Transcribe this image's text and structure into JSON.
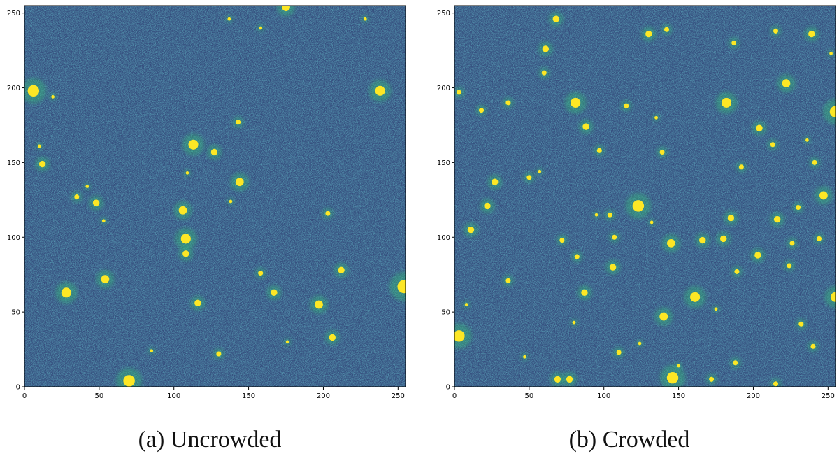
{
  "figure": {
    "colors": {
      "background_dark": "#3a2f6b",
      "background_mid": "#31688e",
      "background_teal": "#35b779",
      "star_yellow": "#fde725"
    },
    "panels": [
      {
        "id": "uncrowded",
        "caption": "(a) Uncrowded",
        "x_ticks": [
          0,
          50,
          100,
          150,
          200,
          250
        ],
        "y_ticks": [
          0,
          50,
          100,
          150,
          200,
          250
        ],
        "xlim": [
          0,
          255
        ],
        "ylim": [
          0,
          255
        ],
        "stars": [
          {
            "x": 175,
            "y": 254,
            "r": 5
          },
          {
            "x": 6,
            "y": 198,
            "r": 7
          },
          {
            "x": 238,
            "y": 198,
            "r": 6
          },
          {
            "x": 19,
            "y": 194,
            "r": 2
          },
          {
            "x": 10,
            "y": 161,
            "r": 2
          },
          {
            "x": 12,
            "y": 149,
            "r": 4
          },
          {
            "x": 113,
            "y": 162,
            "r": 6
          },
          {
            "x": 127,
            "y": 157,
            "r": 4
          },
          {
            "x": 143,
            "y": 177,
            "r": 3
          },
          {
            "x": 109,
            "y": 143,
            "r": 2
          },
          {
            "x": 144,
            "y": 137,
            "r": 5
          },
          {
            "x": 35,
            "y": 127,
            "r": 3
          },
          {
            "x": 48,
            "y": 123,
            "r": 4
          },
          {
            "x": 53,
            "y": 111,
            "r": 2
          },
          {
            "x": 106,
            "y": 118,
            "r": 5
          },
          {
            "x": 108,
            "y": 99,
            "r": 6
          },
          {
            "x": 108,
            "y": 89,
            "r": 4
          },
          {
            "x": 203,
            "y": 116,
            "r": 3
          },
          {
            "x": 212,
            "y": 78,
            "r": 4
          },
          {
            "x": 158,
            "y": 76,
            "r": 3
          },
          {
            "x": 167,
            "y": 63,
            "r": 4
          },
          {
            "x": 54,
            "y": 72,
            "r": 5
          },
          {
            "x": 28,
            "y": 63,
            "r": 6
          },
          {
            "x": 116,
            "y": 56,
            "r": 4
          },
          {
            "x": 197,
            "y": 55,
            "r": 5
          },
          {
            "x": 206,
            "y": 33,
            "r": 4
          },
          {
            "x": 130,
            "y": 22,
            "r": 3
          },
          {
            "x": 70,
            "y": 4,
            "r": 7
          },
          {
            "x": 254,
            "y": 67,
            "r": 8
          },
          {
            "x": 228,
            "y": 246,
            "r": 2
          },
          {
            "x": 137,
            "y": 246,
            "r": 2
          },
          {
            "x": 158,
            "y": 240,
            "r": 2
          },
          {
            "x": 42,
            "y": 134,
            "r": 2
          },
          {
            "x": 138,
            "y": 124,
            "r": 2
          },
          {
            "x": 85,
            "y": 24,
            "r": 2
          },
          {
            "x": 176,
            "y": 30,
            "r": 2
          }
        ]
      },
      {
        "id": "crowded",
        "caption": "(b) Crowded",
        "x_ticks": [
          0,
          50,
          100,
          150,
          200,
          250
        ],
        "y_ticks": [
          0,
          50,
          100,
          150,
          200,
          250
        ],
        "xlim": [
          0,
          255
        ],
        "ylim": [
          0,
          255
        ],
        "stars": [
          {
            "x": 68,
            "y": 246,
            "r": 4
          },
          {
            "x": 61,
            "y": 226,
            "r": 4
          },
          {
            "x": 81,
            "y": 190,
            "r": 6
          },
          {
            "x": 182,
            "y": 190,
            "r": 6
          },
          {
            "x": 255,
            "y": 184,
            "r": 7
          },
          {
            "x": 88,
            "y": 174,
            "r": 4
          },
          {
            "x": 130,
            "y": 236,
            "r": 4
          },
          {
            "x": 222,
            "y": 203,
            "r": 5
          },
          {
            "x": 239,
            "y": 236,
            "r": 4
          },
          {
            "x": 204,
            "y": 173,
            "r": 4
          },
          {
            "x": 123,
            "y": 121,
            "r": 7
          },
          {
            "x": 22,
            "y": 121,
            "r": 4
          },
          {
            "x": 27,
            "y": 137,
            "r": 4
          },
          {
            "x": 11,
            "y": 105,
            "r": 4
          },
          {
            "x": 145,
            "y": 96,
            "r": 5
          },
          {
            "x": 166,
            "y": 98,
            "r": 4
          },
          {
            "x": 180,
            "y": 99,
            "r": 4
          },
          {
            "x": 106,
            "y": 80,
            "r": 4
          },
          {
            "x": 87,
            "y": 63,
            "r": 4
          },
          {
            "x": 161,
            "y": 60,
            "r": 6
          },
          {
            "x": 140,
            "y": 47,
            "r": 5
          },
          {
            "x": 146,
            "y": 6,
            "r": 7
          },
          {
            "x": 69,
            "y": 5,
            "r": 4
          },
          {
            "x": 77,
            "y": 5,
            "r": 4
          },
          {
            "x": 3,
            "y": 34,
            "r": 7
          },
          {
            "x": 255,
            "y": 60,
            "r": 6
          },
          {
            "x": 247,
            "y": 128,
            "r": 5
          },
          {
            "x": 216,
            "y": 112,
            "r": 4
          },
          {
            "x": 203,
            "y": 88,
            "r": 4
          },
          {
            "x": 185,
            "y": 113,
            "r": 4
          },
          {
            "x": 36,
            "y": 71,
            "r": 3
          },
          {
            "x": 50,
            "y": 140,
            "r": 3
          },
          {
            "x": 97,
            "y": 158,
            "r": 3
          },
          {
            "x": 139,
            "y": 157,
            "r": 3
          },
          {
            "x": 232,
            "y": 42,
            "r": 3
          },
          {
            "x": 240,
            "y": 27,
            "r": 3
          },
          {
            "x": 110,
            "y": 23,
            "r": 3
          },
          {
            "x": 188,
            "y": 16,
            "r": 3
          },
          {
            "x": 172,
            "y": 5,
            "r": 3
          },
          {
            "x": 215,
            "y": 2,
            "r": 3
          },
          {
            "x": 18,
            "y": 185,
            "r": 3
          },
          {
            "x": 36,
            "y": 190,
            "r": 3
          },
          {
            "x": 3,
            "y": 197,
            "r": 3
          },
          {
            "x": 115,
            "y": 188,
            "r": 3
          },
          {
            "x": 213,
            "y": 162,
            "r": 3
          },
          {
            "x": 230,
            "y": 120,
            "r": 3
          },
          {
            "x": 244,
            "y": 99,
            "r": 3
          },
          {
            "x": 226,
            "y": 96,
            "r": 3
          },
          {
            "x": 82,
            "y": 87,
            "r": 3
          },
          {
            "x": 72,
            "y": 98,
            "r": 3
          },
          {
            "x": 107,
            "y": 100,
            "r": 3
          },
          {
            "x": 104,
            "y": 115,
            "r": 3
          },
          {
            "x": 192,
            "y": 147,
            "r": 3
          },
          {
            "x": 241,
            "y": 150,
            "r": 3
          },
          {
            "x": 142,
            "y": 239,
            "r": 3
          },
          {
            "x": 187,
            "y": 230,
            "r": 3
          },
          {
            "x": 215,
            "y": 238,
            "r": 3
          },
          {
            "x": 60,
            "y": 210,
            "r": 3
          },
          {
            "x": 57,
            "y": 144,
            "r": 2
          },
          {
            "x": 132,
            "y": 110,
            "r": 2
          },
          {
            "x": 189,
            "y": 77,
            "r": 3
          },
          {
            "x": 47,
            "y": 20,
            "r": 2
          },
          {
            "x": 175,
            "y": 52,
            "r": 2
          },
          {
            "x": 224,
            "y": 81,
            "r": 3
          },
          {
            "x": 150,
            "y": 14,
            "r": 2
          },
          {
            "x": 252,
            "y": 223,
            "r": 2
          },
          {
            "x": 8,
            "y": 55,
            "r": 2
          },
          {
            "x": 95,
            "y": 115,
            "r": 2
          },
          {
            "x": 135,
            "y": 180,
            "r": 2
          },
          {
            "x": 236,
            "y": 165,
            "r": 2
          },
          {
            "x": 80,
            "y": 43,
            "r": 2
          },
          {
            "x": 124,
            "y": 29,
            "r": 2
          }
        ]
      }
    ]
  }
}
